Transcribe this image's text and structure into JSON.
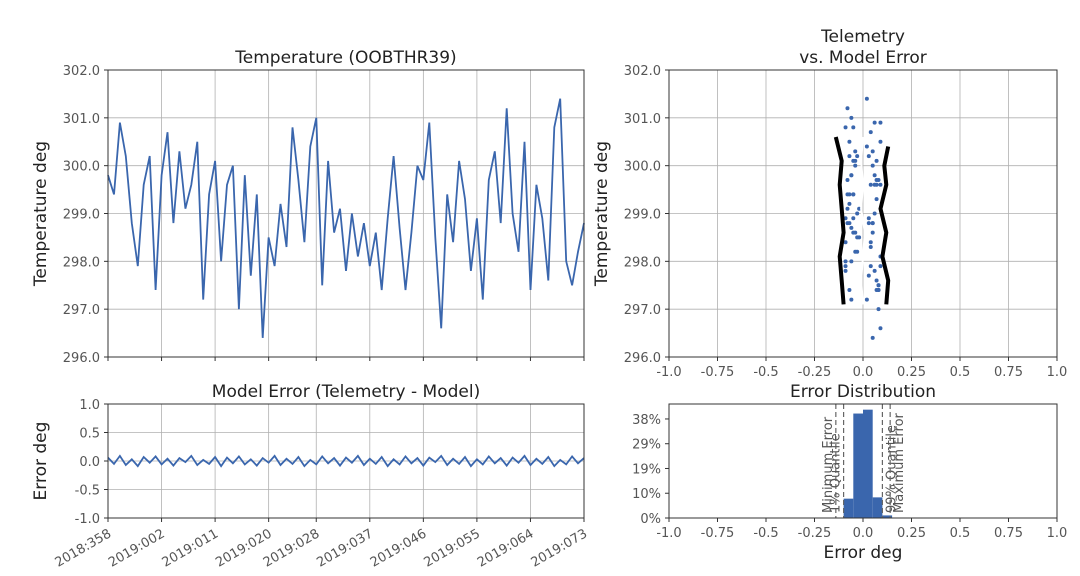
{
  "chart_data": [
    {
      "type": "line",
      "title": "Temperature (OOBTHR39)",
      "ylabel": "Temperature deg",
      "x": [
        0,
        1,
        2,
        3,
        4,
        5,
        6,
        7,
        8,
        9,
        10,
        11,
        12,
        13,
        14,
        15,
        16,
        17,
        18,
        19,
        20,
        21,
        22,
        23,
        24,
        25,
        26,
        27,
        28,
        29,
        30,
        31,
        32,
        33,
        34,
        35,
        36,
        37,
        38,
        39,
        40,
        41,
        42,
        43,
        44,
        45,
        46,
        47,
        48,
        49,
        50,
        51,
        52,
        53,
        54,
        55,
        56,
        57,
        58,
        59,
        60,
        61,
        62,
        63,
        64,
        65,
        66,
        67,
        68,
        69,
        70,
        71,
        72,
        73,
        74,
        75,
        76,
        77,
        78,
        79,
        80
      ],
      "series": [
        {
          "color": "#3a66ad",
          "values": [
            299.8,
            299.4,
            300.9,
            300.2,
            298.8,
            297.9,
            299.6,
            300.2,
            297.4,
            299.8,
            300.7,
            298.8,
            300.3,
            299.1,
            299.6,
            300.5,
            297.2,
            299.4,
            300.1,
            298.0,
            299.6,
            300.0,
            297.0,
            299.8,
            297.7,
            299.4,
            296.4,
            298.5,
            297.9,
            299.2,
            298.3,
            300.8,
            299.7,
            298.4,
            300.4,
            301.0,
            297.5,
            300.1,
            298.6,
            299.1,
            297.8,
            299.0,
            298.1,
            298.8,
            297.9,
            298.6,
            297.4,
            298.9,
            300.2,
            298.7,
            297.4,
            298.6,
            300.0,
            299.7,
            300.9,
            298.5,
            296.6,
            299.4,
            298.4,
            300.1,
            299.3,
            297.8,
            298.9,
            297.2,
            299.7,
            300.3,
            298.8,
            301.2,
            299.0,
            298.2,
            300.5,
            297.4,
            299.6,
            298.9,
            297.6,
            300.8,
            301.4,
            298.0,
            297.5,
            298.2,
            298.8
          ]
        }
      ],
      "xlim": [
        0,
        80
      ],
      "xticks": [
        0,
        9,
        18,
        27,
        35,
        44,
        53,
        62,
        71,
        80
      ],
      "xtick_labels": false,
      "ylim": [
        296,
        302
      ],
      "yticks": [
        {
          "value": 296,
          "label": "296.0"
        },
        {
          "value": 297,
          "label": "297.0"
        },
        {
          "value": 298,
          "label": "298.0"
        },
        {
          "value": 299,
          "label": "299.0"
        },
        {
          "value": 300,
          "label": "300.0"
        },
        {
          "value": 301,
          "label": "301.0"
        },
        {
          "value": 302,
          "label": "302.0"
        }
      ],
      "grid": true
    },
    {
      "type": "scatter",
      "title": "Telemetry\nvs. Model Error",
      "ylabel": "Temperature deg",
      "color": "#3a66ad",
      "x": [
        0.06,
        -0.05,
        0.09,
        -0.07,
        0.03,
        -0.09,
        0.07,
        -0.03,
        0.08,
        -0.06,
        0.04,
        -0.08,
        0.05,
        -0.02,
        0.09,
        -0.07,
        0.02,
        -0.05,
        0.07,
        -0.09,
        0.06,
        -0.04,
        0.08,
        -0.06,
        0.03,
        -0.08,
        0.05,
        -0.03,
        0.09,
        -0.07,
        0.04,
        -0.05,
        0.07,
        -0.09,
        0.02,
        -0.06,
        0.08,
        -0.04,
        0.05,
        -0.08,
        0.06,
        -0.03,
        0.09,
        -0.07,
        0.04,
        -0.05,
        0.07,
        -0.09,
        0.03,
        -0.06,
        0.08,
        -0.04,
        0.05,
        -0.08,
        0.06,
        -0.02,
        0.09,
        -0.07,
        0.04,
        -0.05,
        0.07,
        -0.09,
        0.03,
        -0.06,
        0.08,
        -0.04,
        0.05,
        -0.08,
        0.06,
        -0.03,
        0.09,
        -0.07,
        0.04,
        -0.05,
        0.07,
        -0.09,
        0.02,
        -0.06,
        0.08,
        -0.04,
        0.05
      ],
      "y": [
        299.8,
        299.4,
        300.9,
        300.2,
        298.8,
        297.9,
        299.6,
        300.2,
        297.4,
        299.8,
        300.7,
        298.8,
        300.3,
        299.1,
        299.6,
        300.5,
        297.2,
        299.4,
        300.1,
        298.0,
        299.6,
        300.0,
        297.0,
        299.8,
        297.7,
        299.4,
        296.4,
        298.5,
        297.9,
        299.2,
        298.3,
        300.8,
        299.7,
        298.4,
        300.4,
        301.0,
        297.5,
        300.1,
        298.6,
        299.1,
        297.8,
        299.0,
        298.1,
        298.8,
        297.9,
        298.6,
        297.4,
        298.9,
        300.2,
        298.7,
        297.4,
        298.6,
        300.0,
        299.7,
        300.9,
        298.5,
        296.6,
        299.4,
        298.4,
        300.1,
        299.3,
        297.8,
        298.9,
        297.2,
        299.7,
        300.3,
        298.8,
        301.2,
        299.0,
        298.2,
        300.5,
        297.4,
        299.6,
        298.9,
        297.6,
        300.8,
        301.4,
        298.0,
        297.5,
        298.2,
        298.8
      ],
      "lines": [
        {
          "color": "#000000",
          "x": [
            -0.1,
            -0.11,
            -0.12,
            -0.1,
            -0.11,
            -0.12,
            -0.11,
            -0.14
          ],
          "y": [
            297.1,
            297.6,
            298.1,
            298.6,
            299.1,
            299.6,
            300.1,
            300.6
          ]
        },
        {
          "color": "#000000",
          "x": [
            0.12,
            0.13,
            0.1,
            0.12,
            0.09,
            0.12,
            0.11,
            0.13
          ],
          "y": [
            297.1,
            297.6,
            298.1,
            298.6,
            299.1,
            299.6,
            300.0,
            300.4
          ]
        },
        {
          "color": "#ffffff",
          "x": [
            0.0,
            -0.01,
            0.0,
            0.01,
            -0.01,
            0.0,
            -0.01,
            0.0
          ],
          "y": [
            297.1,
            297.6,
            298.1,
            298.6,
            299.1,
            299.6,
            300.1,
            300.6
          ]
        }
      ],
      "xlim": [
        -1,
        1
      ],
      "xticks": [
        {
          "value": -1,
          "label": "-1.0"
        },
        -0.75,
        -0.5,
        -0.25,
        {
          "value": 0,
          "label": "0.0"
        },
        0.25,
        0.5,
        0.75,
        {
          "value": 1,
          "label": "1.0"
        }
      ],
      "ylim": [
        296,
        302
      ],
      "yticks": [
        {
          "value": 296,
          "label": "296.0"
        },
        {
          "value": 297,
          "label": "297.0"
        },
        {
          "value": 298,
          "label": "298.0"
        },
        {
          "value": 299,
          "label": "299.0"
        },
        {
          "value": 300,
          "label": "300.0"
        },
        {
          "value": 301,
          "label": "301.0"
        },
        {
          "value": 302,
          "label": "302.0"
        }
      ],
      "grid": true
    },
    {
      "type": "line",
      "title": "Model Error (Telemetry - Model)",
      "ylabel": "Error deg",
      "x": [
        0,
        1,
        2,
        3,
        4,
        5,
        6,
        7,
        8,
        9,
        10,
        11,
        12,
        13,
        14,
        15,
        16,
        17,
        18,
        19,
        20,
        21,
        22,
        23,
        24,
        25,
        26,
        27,
        28,
        29,
        30,
        31,
        32,
        33,
        34,
        35,
        36,
        37,
        38,
        39,
        40,
        41,
        42,
        43,
        44,
        45,
        46,
        47,
        48,
        49,
        50,
        51,
        52,
        53,
        54,
        55,
        56,
        57,
        58,
        59,
        60,
        61,
        62,
        63,
        64,
        65,
        66,
        67,
        68,
        69,
        70,
        71,
        72,
        73,
        74,
        75,
        76,
        77,
        78,
        79,
        80
      ],
      "series": [
        {
          "color": "#3a66ad",
          "values": [
            0.06,
            -0.05,
            0.09,
            -0.07,
            0.03,
            -0.09,
            0.07,
            -0.03,
            0.08,
            -0.06,
            0.04,
            -0.08,
            0.05,
            -0.02,
            0.09,
            -0.07,
            0.02,
            -0.05,
            0.07,
            -0.09,
            0.06,
            -0.04,
            0.08,
            -0.06,
            0.03,
            -0.08,
            0.05,
            -0.03,
            0.09,
            -0.07,
            0.04,
            -0.05,
            0.07,
            -0.09,
            0.02,
            -0.06,
            0.08,
            -0.04,
            0.05,
            -0.08,
            0.06,
            -0.03,
            0.09,
            -0.07,
            0.04,
            -0.05,
            0.07,
            -0.09,
            0.03,
            -0.06,
            0.08,
            -0.04,
            0.05,
            -0.08,
            0.06,
            -0.02,
            0.09,
            -0.07,
            0.04,
            -0.05,
            0.07,
            -0.09,
            0.03,
            -0.06,
            0.08,
            -0.04,
            0.05,
            -0.08,
            0.06,
            -0.03,
            0.09,
            -0.07,
            0.04,
            -0.05,
            0.07,
            -0.09,
            0.02,
            -0.06,
            0.08,
            -0.04,
            0.05
          ]
        }
      ],
      "xlim": [
        0,
        80
      ],
      "xticks": [
        {
          "value": 0,
          "label": "2018:358"
        },
        {
          "value": 9,
          "label": "2019:002"
        },
        {
          "value": 18,
          "label": "2019:011"
        },
        {
          "value": 27,
          "label": "2019:020"
        },
        {
          "value": 35,
          "label": "2019:028"
        },
        {
          "value": 44,
          "label": "2019:037"
        },
        {
          "value": 53,
          "label": "2019:046"
        },
        {
          "value": 62,
          "label": "2019:055"
        },
        {
          "value": 71,
          "label": "2019:064"
        },
        {
          "value": 80,
          "label": "2019:073"
        }
      ],
      "ylim": [
        -1,
        1
      ],
      "yticks": [
        {
          "value": -1,
          "label": "-1.0"
        },
        -0.5,
        {
          "value": 0,
          "label": "0.0"
        },
        0.5,
        {
          "value": 1,
          "label": "1.0"
        }
      ],
      "grid": true
    },
    {
      "type": "histogram",
      "title": "Error Distribution",
      "xlabel": "Error deg",
      "color": "#3a66ad",
      "bins": [
        -0.1,
        -0.05,
        0,
        0.05,
        0.1,
        0.15
      ],
      "values": [
        7.5,
        40.5,
        42,
        8,
        1
      ],
      "vlines": [
        {
          "label": "Minimum Error",
          "value": -0.14
        },
        {
          "label": "1% Quantile",
          "value": -0.1
        },
        {
          "label": "99% Quantile",
          "value": 0.1
        },
        {
          "label": "Maximum Error",
          "value": 0.14
        }
      ],
      "xlim": [
        -1,
        1
      ],
      "xticks": [
        {
          "value": -1,
          "label": "-1.0"
        },
        -0.75,
        -0.5,
        -0.25,
        {
          "value": 0,
          "label": "0.0"
        },
        0.25,
        0.5,
        0.75,
        {
          "value": 1,
          "label": "1.0"
        }
      ],
      "ylim": [
        0,
        44.2
      ],
      "yticks": [
        {
          "value": 0,
          "label": "0%"
        },
        {
          "value": 9.6,
          "label": "10%"
        },
        {
          "value": 19.2,
          "label": "19%"
        },
        {
          "value": 28.8,
          "label": "29%"
        },
        {
          "value": 38.4,
          "label": "38%"
        }
      ],
      "grid": false
    }
  ]
}
